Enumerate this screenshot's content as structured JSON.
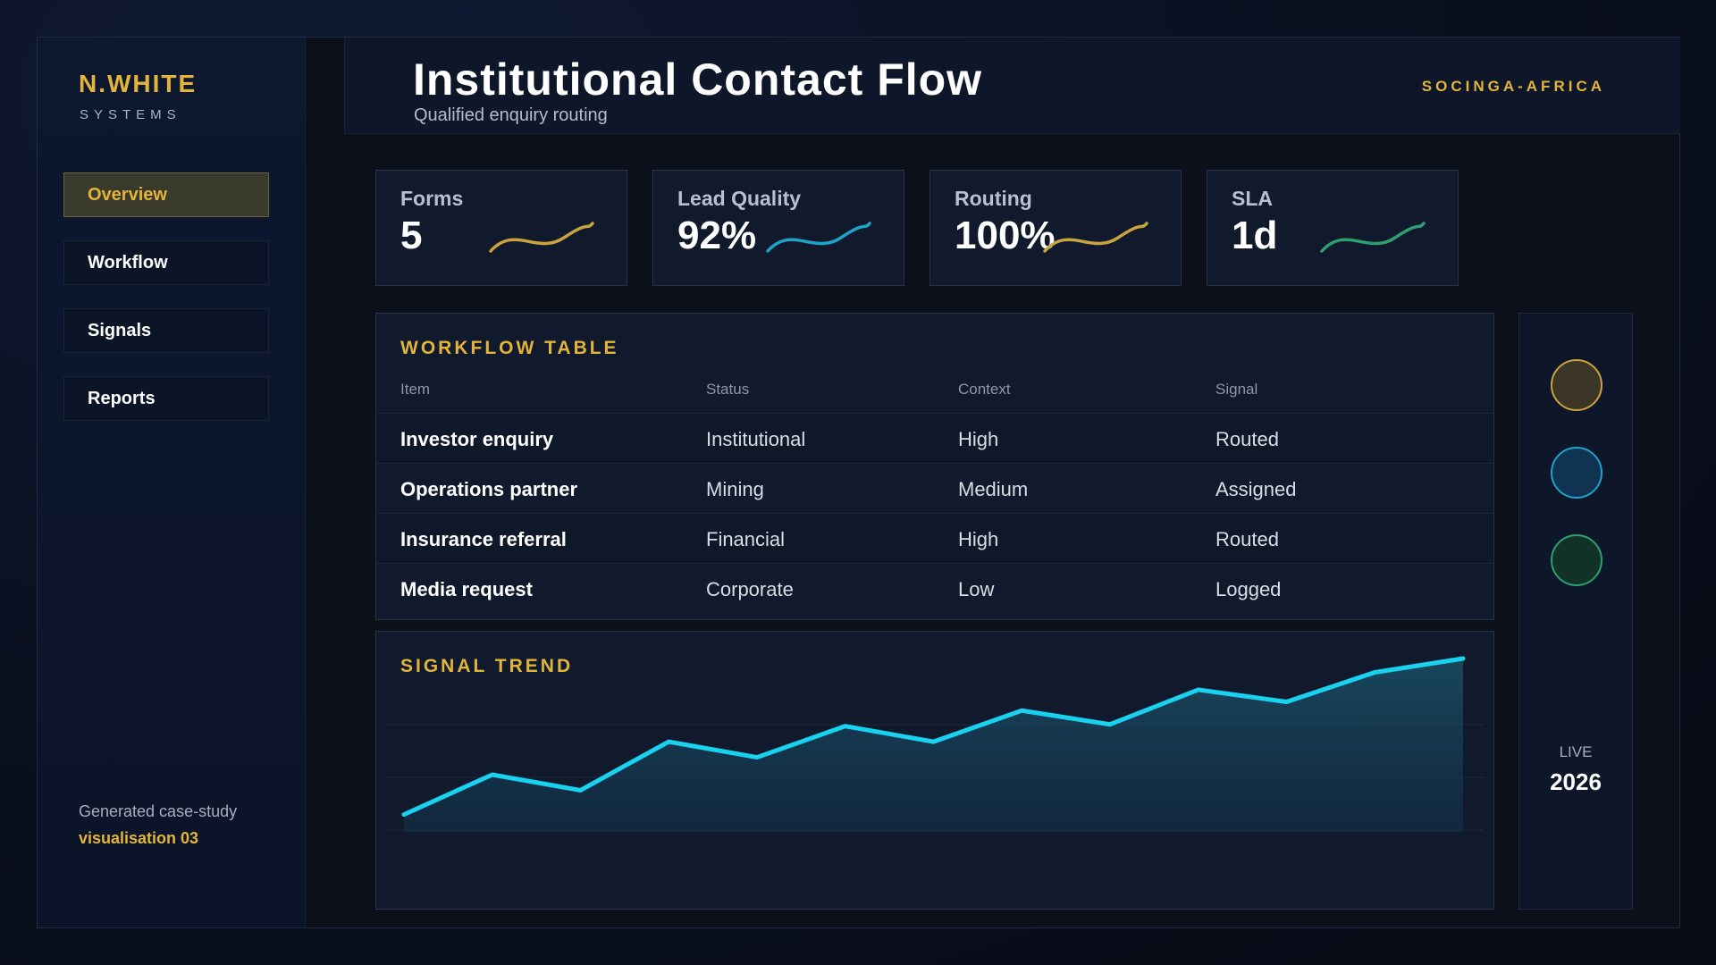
{
  "brand": {
    "name": "N.WHITE",
    "sub": "SYSTEMS"
  },
  "nav": {
    "items": [
      {
        "label": "Overview",
        "active": true
      },
      {
        "label": "Workflow",
        "active": false
      },
      {
        "label": "Signals",
        "active": false
      },
      {
        "label": "Reports",
        "active": false
      }
    ]
  },
  "sidebar_footer": {
    "line1": "Generated case-study",
    "line2": "visualisation 03"
  },
  "header": {
    "title": "Institutional Contact Flow",
    "subtitle": "Qualified enquiry routing",
    "org": "SOCINGA-AFRICA"
  },
  "kpis": [
    {
      "label": "Forms",
      "value": "5",
      "color": "#c9a33e"
    },
    {
      "label": "Lead Quality",
      "value": "92%",
      "color": "#1fa3c7"
    },
    {
      "label": "Routing",
      "value": "100%",
      "color": "#c9a33e"
    },
    {
      "label": "SLA",
      "value": "1d",
      "color": "#2e9f70"
    }
  ],
  "table": {
    "title": "WORKFLOW TABLE",
    "columns": [
      "Item",
      "Status",
      "Context",
      "Signal"
    ],
    "rows": [
      [
        "Investor enquiry",
        "Institutional",
        "High",
        "Routed"
      ],
      [
        "Operations partner",
        "Mining",
        "Medium",
        "Assigned"
      ],
      [
        "Insurance referral",
        "Financial",
        "High",
        "Routed"
      ],
      [
        "Media request",
        "Corporate",
        "Low",
        "Logged"
      ]
    ]
  },
  "chart_data": {
    "type": "area",
    "title": "SIGNAL TREND",
    "xlabel": "",
    "ylabel": "",
    "x": [
      1,
      2,
      3,
      4,
      5,
      6,
      7,
      8,
      9,
      10,
      11,
      12,
      13
    ],
    "values": [
      10,
      33,
      24,
      52,
      43,
      61,
      52,
      70,
      62,
      82,
      75,
      92,
      100
    ],
    "ylim": [
      0,
      100
    ],
    "grid": true,
    "color": "#19d2f0"
  },
  "rail": {
    "dots": [
      {
        "name": "gold-status-dot",
        "fill": "#3b3626",
        "stroke": "#c9a33e"
      },
      {
        "name": "cyan-status-dot",
        "fill": "#0f3350",
        "stroke": "#1fa3c7"
      },
      {
        "name": "green-status-dot",
        "fill": "#113129",
        "stroke": "#2e9f70"
      }
    ],
    "live_label": "LIVE",
    "year": "2026"
  }
}
